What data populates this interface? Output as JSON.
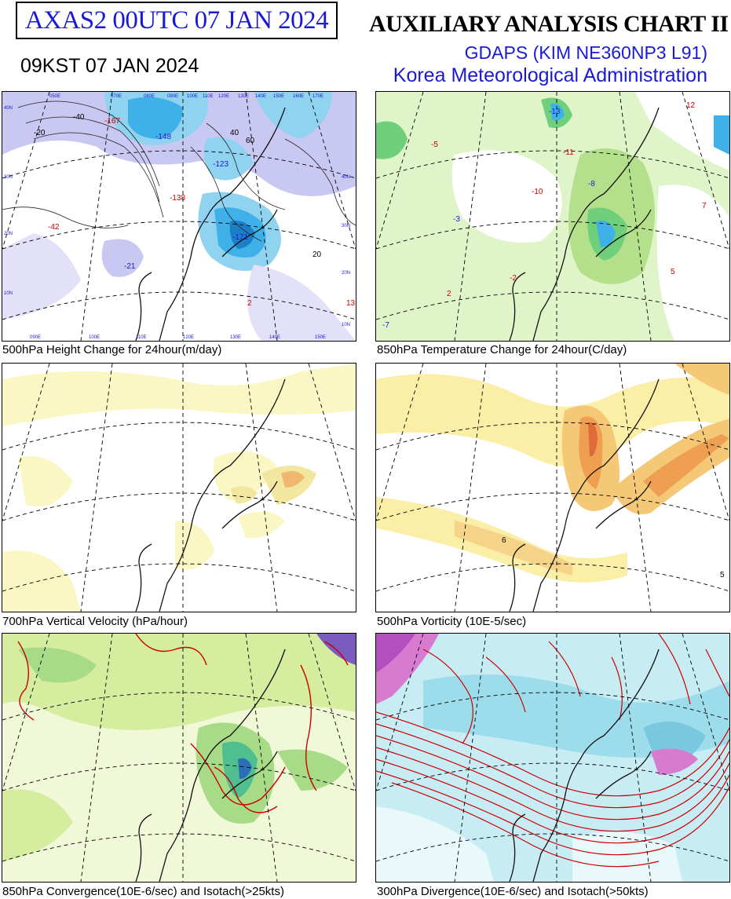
{
  "header": {
    "chart_id": "AXAS2  00UTC 07 JAN 2024",
    "local_time": "09KST 07 JAN 2024",
    "title": "AUXILIARY ANALYSIS CHART II",
    "model": "GDAPS (KIM NE360NP3 L91)",
    "agency": "Korea Meteorological Administration"
  },
  "panels": [
    {
      "caption": "500hPa Height Change for 24hour(m/day)",
      "labels": [
        "-167",
        "-148",
        "-123",
        "-171",
        "-138",
        "-42",
        "-21",
        "-20",
        "-40",
        "2",
        "13",
        "20",
        "40",
        "60"
      ]
    },
    {
      "caption": "850hPa Temperature Change for 24hour(C/day)",
      "labels": [
        "-13",
        "-10",
        "-11",
        "-8",
        "-7",
        "-5",
        "-3",
        "-2",
        "2",
        "5",
        "7",
        "12"
      ]
    },
    {
      "caption": "700hPa Vertical Velocity (hPa/hour)",
      "labels": []
    },
    {
      "caption": "500hPa Vorticity (10E-5/sec)",
      "labels": [
        "6",
        "5"
      ]
    },
    {
      "caption": "850hPa Convergence(10E-6/sec) and Isotach(>25kts)",
      "labels": []
    },
    {
      "caption": "300hPa Divergence(10E-6/sec) and Isotach(>50kts)",
      "labels": []
    }
  ],
  "grid_labels": {
    "lon_top": [
      "050E",
      "070E",
      "080E",
      "090E",
      "100E",
      "110E",
      "120E",
      "130E",
      "140E",
      "150E",
      "160E",
      "170E"
    ],
    "lon_bottom": [
      "090E",
      "100E",
      "110E",
      "120E",
      "130E",
      "140E",
      "150E"
    ],
    "lat_left": [
      "40N",
      "30N",
      "20N",
      "10N"
    ],
    "lat_right": [
      "40N",
      "30N",
      "20N",
      "10N"
    ]
  }
}
